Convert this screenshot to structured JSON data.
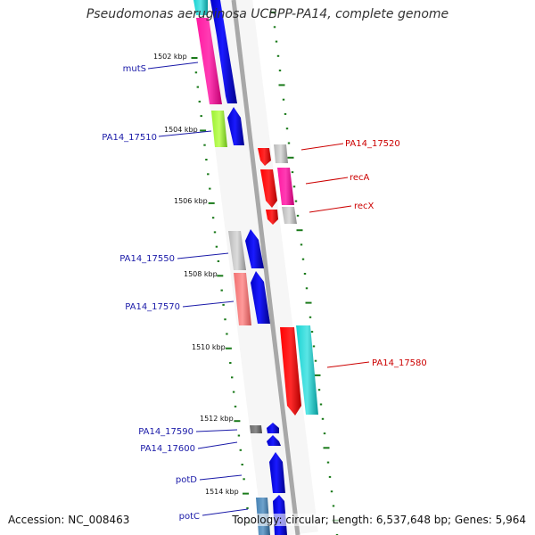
{
  "title": "Pseudomonas aeruginosa UCBPP-PA14, complete genome",
  "accession": "Accession: NC_008463",
  "stats": "Topology: circular; Length: 6,537,648 bp; Genes: 5,964",
  "colors": {
    "backbone": "#a8a8a8",
    "tick": "#1a7a1a",
    "forward_label": "#1a1aa8",
    "reverse_label": "#cc0000"
  },
  "ticks": [
    "1502 kbp",
    "1504 kbp",
    "1506 kbp",
    "1508 kbp",
    "1510 kbp",
    "1512 kbp",
    "1514 kbp"
  ],
  "labels": {
    "left": [
      "mutS",
      "PA14_17510",
      "PA14_17550",
      "PA14_17570",
      "PA14_17590",
      "PA14_17600",
      "potD",
      "potC"
    ],
    "right": [
      "PA14_17520",
      "recA",
      "recX",
      "PA14_17580"
    ]
  }
}
